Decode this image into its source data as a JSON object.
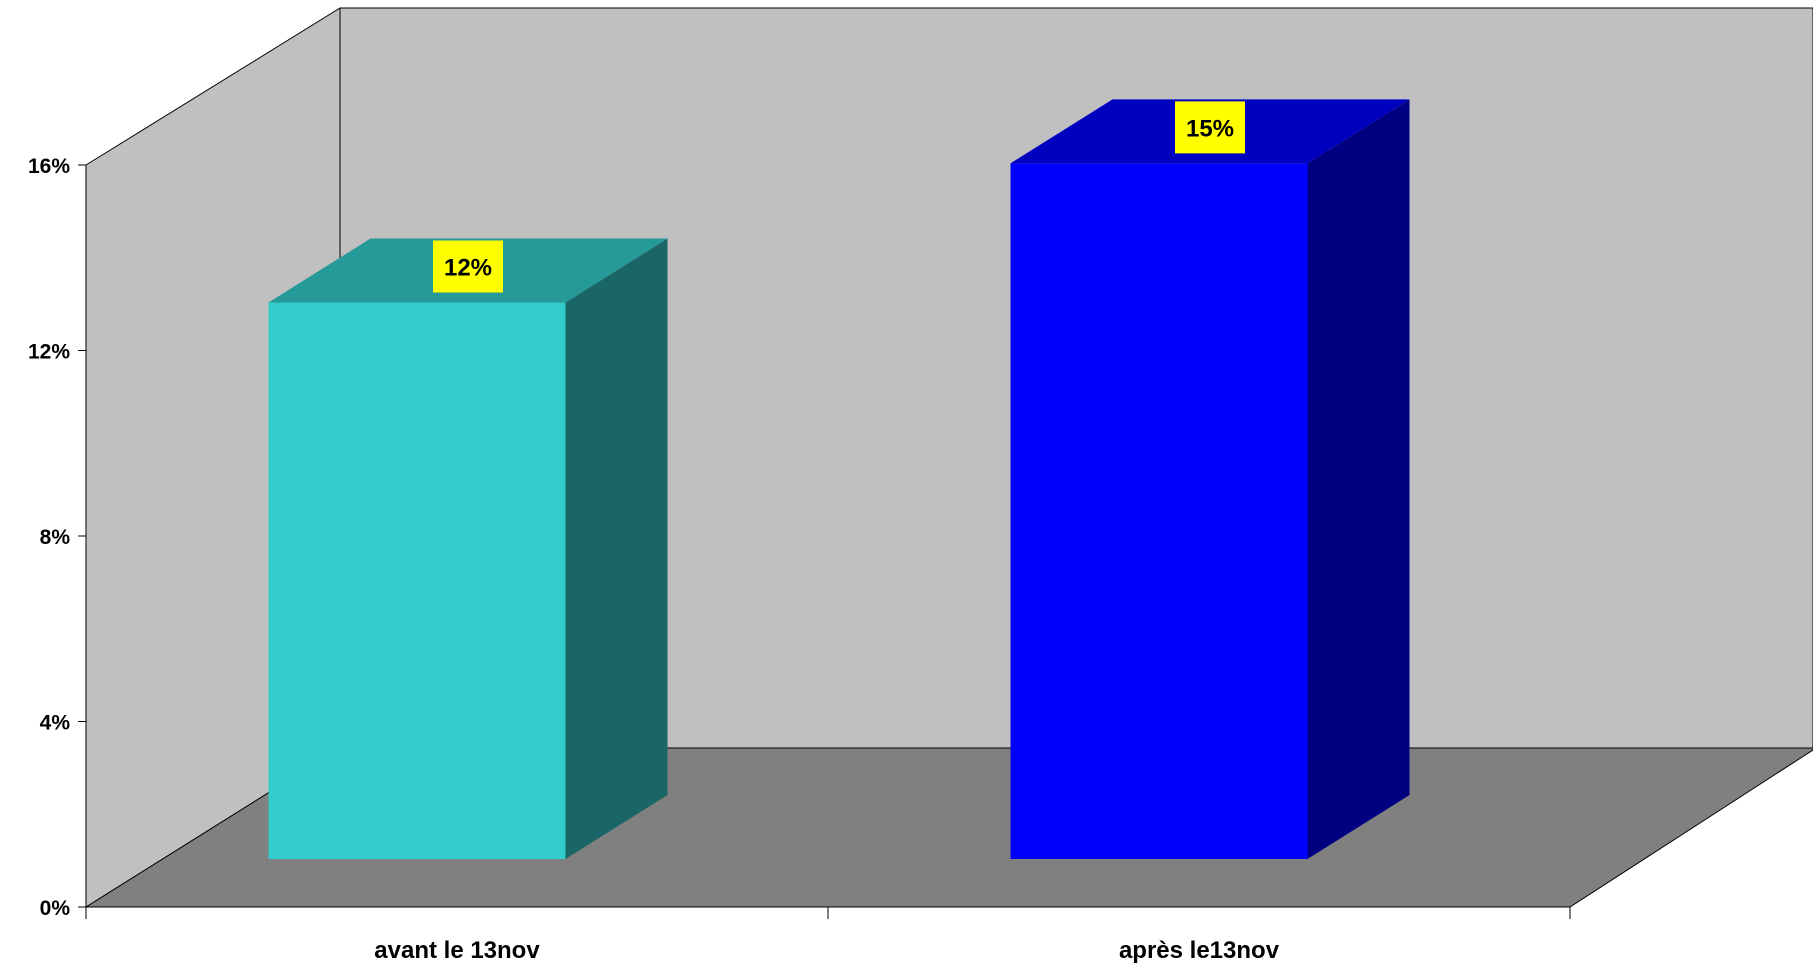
{
  "chart_data": {
    "type": "bar",
    "style": "3d-column",
    "categories": [
      "avant le 13nov",
      "après le13nov"
    ],
    "values": [
      12,
      15
    ],
    "data_labels": [
      "12%",
      "15%"
    ],
    "yticks": [
      "0%",
      "4%",
      "8%",
      "12%",
      "16%"
    ],
    "ylim": [
      0,
      16
    ],
    "title": "",
    "xlabel": "",
    "ylabel": "",
    "legend": "none",
    "grid": false,
    "colors": {
      "bar_fronts": [
        "#33CCCC",
        "#0000FF"
      ],
      "bar_tops": [
        "#269999",
        "#0000BF"
      ],
      "bar_sides": [
        "#1A6666",
        "#000080"
      ],
      "label_background": "#FFFF00",
      "back_wall": "#C0C0C0",
      "side_wall": "#C0C0C0",
      "floor": "#808080"
    }
  }
}
